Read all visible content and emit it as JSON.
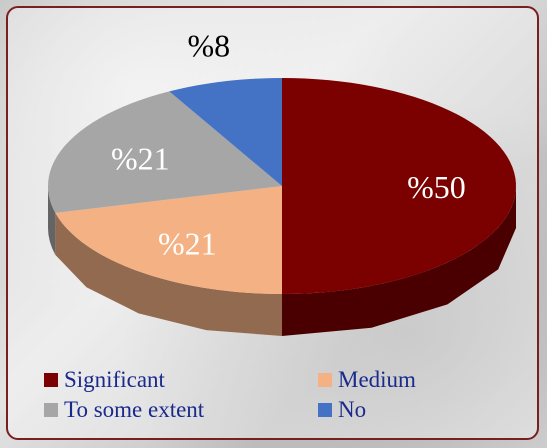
{
  "chart_data": {
    "type": "pie",
    "title": "",
    "slices": [
      {
        "label": "Significant",
        "value": 50,
        "display": "%50",
        "color": "#7b0000",
        "label_color": "#ffffff"
      },
      {
        "label": "Medium",
        "value": 21,
        "display": "%21",
        "color": "#f4b183",
        "label_color": "#ffffff"
      },
      {
        "label": "To some extent",
        "value": 21,
        "display": "%21",
        "color": "#a6a6a6",
        "label_color": "#ffffff"
      },
      {
        "label": "No",
        "value": 8,
        "display": "%8",
        "color": "#4472c4",
        "label_color": "#000000"
      }
    ],
    "style": "3d",
    "legend_position": "bottom"
  },
  "legend": {
    "items": [
      {
        "label": "Significant",
        "color": "#7b0000"
      },
      {
        "label": "Medium",
        "color": "#f4b183"
      },
      {
        "label": "To some extent",
        "color": "#a6a6a6"
      },
      {
        "label": "No",
        "color": "#4472c4"
      }
    ]
  }
}
